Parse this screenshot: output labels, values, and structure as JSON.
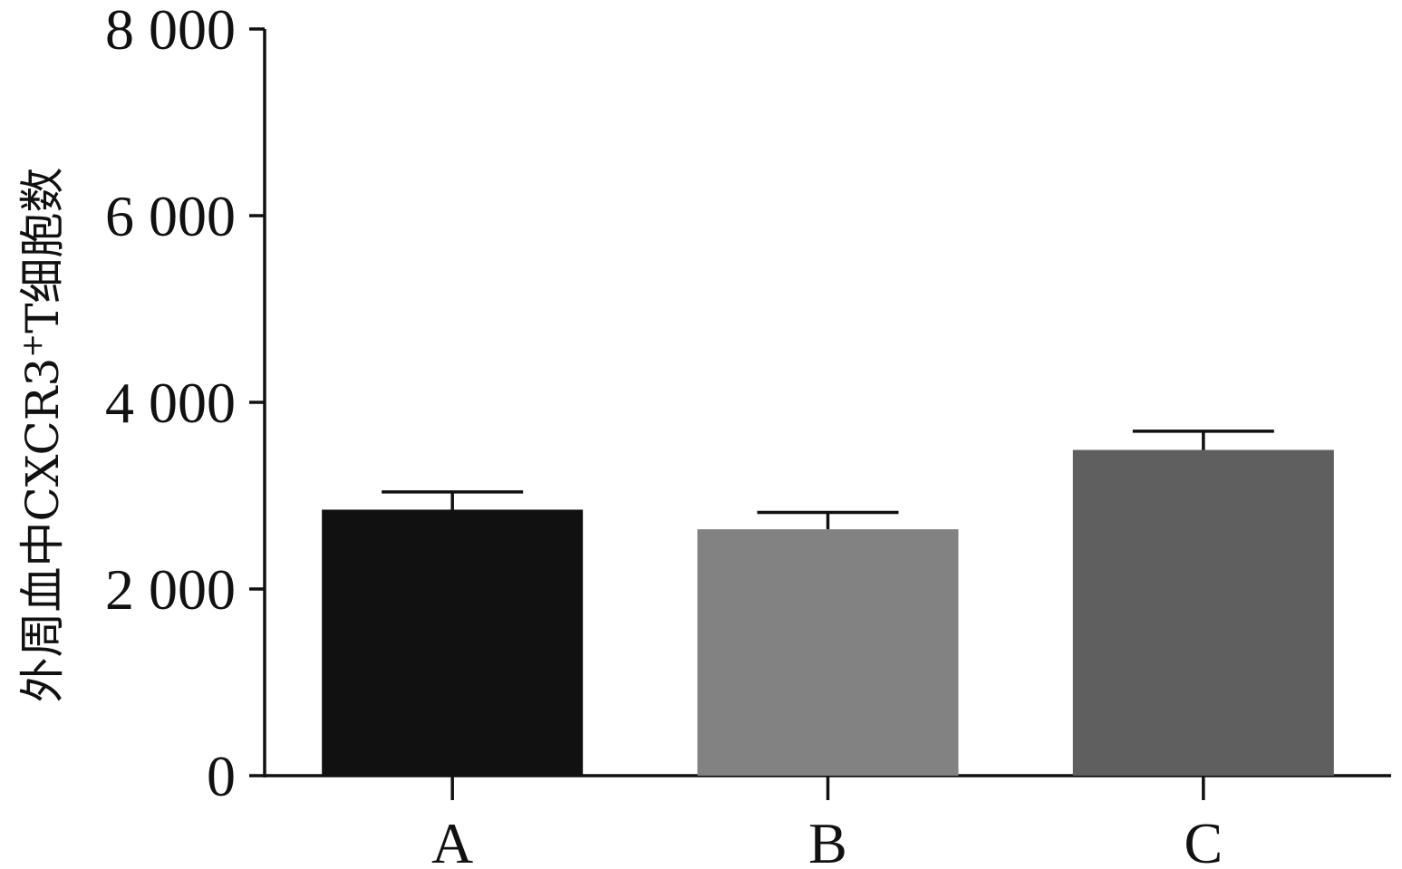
{
  "chart_data": {
    "type": "bar",
    "title": "",
    "xlabel": "",
    "ylabel_main": "外周血中CXCR3",
    "ylabel_sup": "+",
    "ylabel_tail": "T细胞数",
    "ylim": [
      0,
      8000
    ],
    "yticks": [
      0,
      2000,
      4000,
      6000,
      8000
    ],
    "ytick_labels": [
      "0",
      "2 000",
      "4 000",
      "6 000",
      "8 000"
    ],
    "categories": [
      "A",
      "B",
      "C"
    ],
    "values": [
      2850,
      2640,
      3490
    ],
    "errors": [
      190,
      180,
      200
    ],
    "colors": [
      "#111111",
      "#828282",
      "#5f5f5f"
    ],
    "grid": false
  }
}
